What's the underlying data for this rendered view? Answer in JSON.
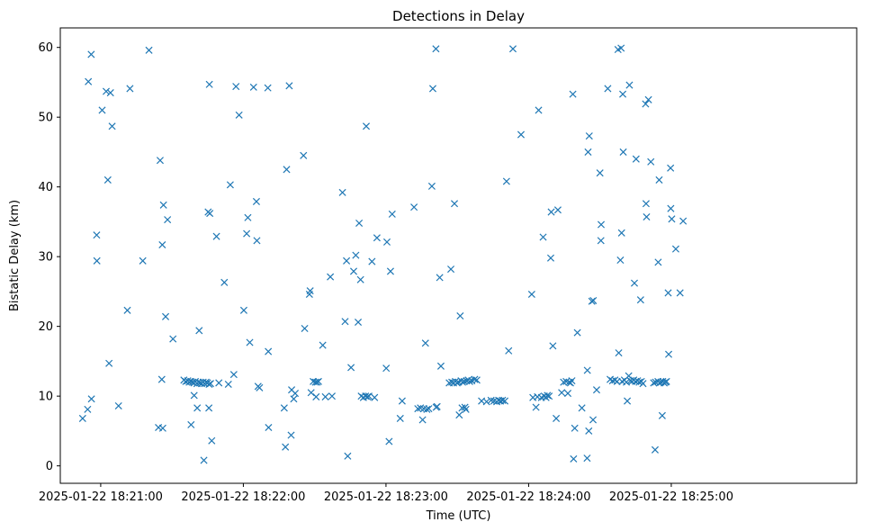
{
  "chart_data": {
    "type": "scatter",
    "title": "Detections in Delay",
    "xlabel": "Time (UTC)",
    "ylabel": "Bistatic Delay (km)",
    "marker": "x",
    "marker_color": "#1f77b4",
    "grid": false,
    "legend": "none",
    "x_unit": "seconds after 2025-01-22 18:20:00",
    "xlim": [
      43,
      378
    ],
    "ylim": [
      -2.5,
      62.8
    ],
    "x_ticks": [
      {
        "value": 60,
        "label": "2025-01-22 18:21:00"
      },
      {
        "value": 120,
        "label": "2025-01-22 18:22:00"
      },
      {
        "value": 180,
        "label": "2025-01-22 18:23:00"
      },
      {
        "value": 240,
        "label": "2025-01-22 18:24:00"
      },
      {
        "value": 300,
        "label": "2025-01-22 18:25:00"
      }
    ],
    "y_ticks": [
      {
        "value": 0,
        "label": "0"
      },
      {
        "value": 10,
        "label": "10"
      },
      {
        "value": 20,
        "label": "20"
      },
      {
        "value": 30,
        "label": "30"
      },
      {
        "value": 40,
        "label": "40"
      },
      {
        "value": 50,
        "label": "50"
      },
      {
        "value": 60,
        "label": "60"
      }
    ],
    "points": [
      [
        52.4,
        6.8
      ],
      [
        54.5,
        8.1
      ],
      [
        54.8,
        55.1
      ],
      [
        56.0,
        59.0
      ],
      [
        56.1,
        9.6
      ],
      [
        58.3,
        33.1
      ],
      [
        58.4,
        29.4
      ],
      [
        60.6,
        51.0
      ],
      [
        62.3,
        53.7
      ],
      [
        63.0,
        41.0
      ],
      [
        63.5,
        14.7
      ],
      [
        64.1,
        53.5
      ],
      [
        64.8,
        48.7
      ],
      [
        67.5,
        8.6
      ],
      [
        71.2,
        22.3
      ],
      [
        72.3,
        54.1
      ],
      [
        77.7,
        29.4
      ],
      [
        80.3,
        59.6
      ],
      [
        84.3,
        5.5
      ],
      [
        85.0,
        43.8
      ],
      [
        85.7,
        12.4
      ],
      [
        85.9,
        31.7
      ],
      [
        86.1,
        5.4
      ],
      [
        86.4,
        37.4
      ],
      [
        87.3,
        21.4
      ],
      [
        88.1,
        35.3
      ],
      [
        90.4,
        18.2
      ],
      [
        95.0,
        12.3
      ],
      [
        95.8,
        12.1
      ],
      [
        96.6,
        12.2
      ],
      [
        97.2,
        12.0
      ],
      [
        97.9,
        12.1
      ],
      [
        98.6,
        12.0
      ],
      [
        99.2,
        11.9
      ],
      [
        99.8,
        12.1
      ],
      [
        100.5,
        11.8
      ],
      [
        101.1,
        12.0
      ],
      [
        101.8,
        11.9
      ],
      [
        102.4,
        11.8
      ],
      [
        103.1,
        12.0
      ],
      [
        103.7,
        11.8
      ],
      [
        104.3,
        12.0
      ],
      [
        104.9,
        11.9
      ],
      [
        105.6,
        11.7
      ],
      [
        106.2,
        11.8
      ],
      [
        98.0,
        5.9
      ],
      [
        99.3,
        10.1
      ],
      [
        100.6,
        8.3
      ],
      [
        101.4,
        19.4
      ],
      [
        103.4,
        0.8
      ],
      [
        105.2,
        36.4
      ],
      [
        105.5,
        8.3
      ],
      [
        105.7,
        54.7
      ],
      [
        105.9,
        36.2
      ],
      [
        106.7,
        3.6
      ],
      [
        108.7,
        32.9
      ],
      [
        109.7,
        11.9
      ],
      [
        112.0,
        26.3
      ],
      [
        113.7,
        11.7
      ],
      [
        114.5,
        40.3
      ],
      [
        116.0,
        13.1
      ],
      [
        116.9,
        54.4
      ],
      [
        118.2,
        50.3
      ],
      [
        120.2,
        22.3
      ],
      [
        121.4,
        33.3
      ],
      [
        121.9,
        35.6
      ],
      [
        122.7,
        17.7
      ],
      [
        124.3,
        54.3
      ],
      [
        125.5,
        37.9
      ],
      [
        125.7,
        32.3
      ],
      [
        126.2,
        11.4
      ],
      [
        126.8,
        11.2
      ],
      [
        130.3,
        54.2
      ],
      [
        130.5,
        16.4
      ],
      [
        130.6,
        5.5
      ],
      [
        137.2,
        8.3
      ],
      [
        137.7,
        2.7
      ],
      [
        138.2,
        42.5
      ],
      [
        139.3,
        54.5
      ],
      [
        140.1,
        4.4
      ],
      [
        140.3,
        10.9
      ],
      [
        141.2,
        9.6
      ],
      [
        141.8,
        10.4
      ],
      [
        145.3,
        44.5
      ],
      [
        145.8,
        19.7
      ],
      [
        147.8,
        24.6
      ],
      [
        148.1,
        25.1
      ],
      [
        148.5,
        10.5
      ],
      [
        149.4,
        12.1
      ],
      [
        150.3,
        12.0
      ],
      [
        150.6,
        9.9
      ],
      [
        151.0,
        12.0
      ],
      [
        151.6,
        12.1
      ],
      [
        153.4,
        17.3
      ],
      [
        154.5,
        9.9
      ],
      [
        156.6,
        27.1
      ],
      [
        157.3,
        10.0
      ],
      [
        161.7,
        39.2
      ],
      [
        162.8,
        20.7
      ],
      [
        163.4,
        29.4
      ],
      [
        163.9,
        1.4
      ],
      [
        165.3,
        14.1
      ],
      [
        166.4,
        27.9
      ],
      [
        167.3,
        30.2
      ],
      [
        168.3,
        20.6
      ],
      [
        168.7,
        34.8
      ],
      [
        169.3,
        26.7
      ],
      [
        169.6,
        10.0
      ],
      [
        170.5,
        9.8
      ],
      [
        171.4,
        10.0
      ],
      [
        171.7,
        48.7
      ],
      [
        172.2,
        9.9
      ],
      [
        172.8,
        10.0
      ],
      [
        174.1,
        29.3
      ],
      [
        175.2,
        9.8
      ],
      [
        176.2,
        32.7
      ],
      [
        180.1,
        14.0
      ],
      [
        180.4,
        32.1
      ],
      [
        181.3,
        3.5
      ],
      [
        181.9,
        27.9
      ],
      [
        182.6,
        36.1
      ],
      [
        186.0,
        6.8
      ],
      [
        186.8,
        9.3
      ],
      [
        191.8,
        37.1
      ],
      [
        193.4,
        8.2
      ],
      [
        194.5,
        8.3
      ],
      [
        195.4,
        6.6
      ],
      [
        195.9,
        8.2
      ],
      [
        196.6,
        17.6
      ],
      [
        197.2,
        8.1
      ],
      [
        198.0,
        8.2
      ],
      [
        199.3,
        40.1
      ],
      [
        199.7,
        54.1
      ],
      [
        201.0,
        59.8
      ],
      [
        201.1,
        8.4
      ],
      [
        201.5,
        8.5
      ],
      [
        202.6,
        27.0
      ],
      [
        203.1,
        14.3
      ],
      [
        206.6,
        11.9
      ],
      [
        207.3,
        28.2
      ],
      [
        207.7,
        12.0
      ],
      [
        208.4,
        11.9
      ],
      [
        208.8,
        37.6
      ],
      [
        209.2,
        12.1
      ],
      [
        209.9,
        11.9
      ],
      [
        210.5,
        12.0
      ],
      [
        210.8,
        7.3
      ],
      [
        211.2,
        21.5
      ],
      [
        211.6,
        12.2
      ],
      [
        212.0,
        8.3
      ],
      [
        212.2,
        12.0
      ],
      [
        212.9,
        12.1
      ],
      [
        213.2,
        8.4
      ],
      [
        213.6,
        8.1
      ],
      [
        213.9,
        12.2
      ],
      [
        214.6,
        12.3
      ],
      [
        215.2,
        12.1
      ],
      [
        216.1,
        12.2
      ],
      [
        217.3,
        12.4
      ],
      [
        218.2,
        12.3
      ],
      [
        220.2,
        9.3
      ],
      [
        222.3,
        9.2
      ],
      [
        224.2,
        9.4
      ],
      [
        225.4,
        9.3
      ],
      [
        226.6,
        9.2
      ],
      [
        227.4,
        9.4
      ],
      [
        228.2,
        9.3
      ],
      [
        229.0,
        9.4
      ],
      [
        230.0,
        9.3
      ],
      [
        230.7,
        40.8
      ],
      [
        231.6,
        16.5
      ],
      [
        233.4,
        59.8
      ],
      [
        236.8,
        47.5
      ],
      [
        241.3,
        24.6
      ],
      [
        241.8,
        9.8
      ],
      [
        243.1,
        8.4
      ],
      [
        243.7,
        9.9
      ],
      [
        244.2,
        51.0
      ],
      [
        245.4,
        9.8
      ],
      [
        246.1,
        32.8
      ],
      [
        246.6,
        10.0
      ],
      [
        247.3,
        9.8
      ],
      [
        247.9,
        10.1
      ],
      [
        248.6,
        10.0
      ],
      [
        249.3,
        29.8
      ],
      [
        249.5,
        36.4
      ],
      [
        250.2,
        17.2
      ],
      [
        251.6,
        6.8
      ],
      [
        252.3,
        36.7
      ],
      [
        253.9,
        10.5
      ],
      [
        254.7,
        12.0
      ],
      [
        255.8,
        12.1
      ],
      [
        256.5,
        10.4
      ],
      [
        257.0,
        12.0
      ],
      [
        257.6,
        11.9
      ],
      [
        258.2,
        12.2
      ],
      [
        258.6,
        53.3
      ],
      [
        258.9,
        1.0
      ],
      [
        259.4,
        5.4
      ],
      [
        260.5,
        19.1
      ],
      [
        262.4,
        8.3
      ],
      [
        264.6,
        1.1
      ],
      [
        264.7,
        13.7
      ],
      [
        265.0,
        45.0
      ],
      [
        265.3,
        5.0
      ],
      [
        265.5,
        47.3
      ],
      [
        266.6,
        23.6
      ],
      [
        267.1,
        6.6
      ],
      [
        267.2,
        23.7
      ],
      [
        268.6,
        10.9
      ],
      [
        270.0,
        42.0
      ],
      [
        270.4,
        32.3
      ],
      [
        270.5,
        34.6
      ],
      [
        273.3,
        54.1
      ],
      [
        274.3,
        12.4
      ],
      [
        275.3,
        12.2
      ],
      [
        276.3,
        12.3
      ],
      [
        277.2,
        12.1
      ],
      [
        277.6,
        59.7
      ],
      [
        277.9,
        16.2
      ],
      [
        278.6,
        29.5
      ],
      [
        278.9,
        59.9
      ],
      [
        279.1,
        33.4
      ],
      [
        279.3,
        12.1
      ],
      [
        279.6,
        53.3
      ],
      [
        279.8,
        45.0
      ],
      [
        280.3,
        12.3
      ],
      [
        281.1,
        12.0
      ],
      [
        281.5,
        9.3
      ],
      [
        282.1,
        12.9
      ],
      [
        282.4,
        54.6
      ],
      [
        282.8,
        12.2
      ],
      [
        283.4,
        12.1
      ],
      [
        284.2,
        12.3
      ],
      [
        284.5,
        26.2
      ],
      [
        285.0,
        12.1
      ],
      [
        285.2,
        44.0
      ],
      [
        285.8,
        12.2
      ],
      [
        286.5,
        12.0
      ],
      [
        287.1,
        23.8
      ],
      [
        287.4,
        12.1
      ],
      [
        288.1,
        11.8
      ],
      [
        289.2,
        51.9
      ],
      [
        289.4,
        37.6
      ],
      [
        289.6,
        35.7
      ],
      [
        290.4,
        52.5
      ],
      [
        291.4,
        43.6
      ],
      [
        292.6,
        11.9
      ],
      [
        293.2,
        2.3
      ],
      [
        293.4,
        12.0
      ],
      [
        294.4,
        12.1
      ],
      [
        294.5,
        29.2
      ],
      [
        294.9,
        41.0
      ],
      [
        295.1,
        11.9
      ],
      [
        295.7,
        12.0
      ],
      [
        296.2,
        7.2
      ],
      [
        296.4,
        12.1
      ],
      [
        297.0,
        11.9
      ],
      [
        297.6,
        12.0
      ],
      [
        298.0,
        12.1
      ],
      [
        298.7,
        24.8
      ],
      [
        298.9,
        16.0
      ],
      [
        299.7,
        42.7
      ],
      [
        299.8,
        36.9
      ],
      [
        300.2,
        35.4
      ],
      [
        301.9,
        31.1
      ],
      [
        303.7,
        24.8
      ],
      [
        305.0,
        35.1
      ]
    ]
  }
}
